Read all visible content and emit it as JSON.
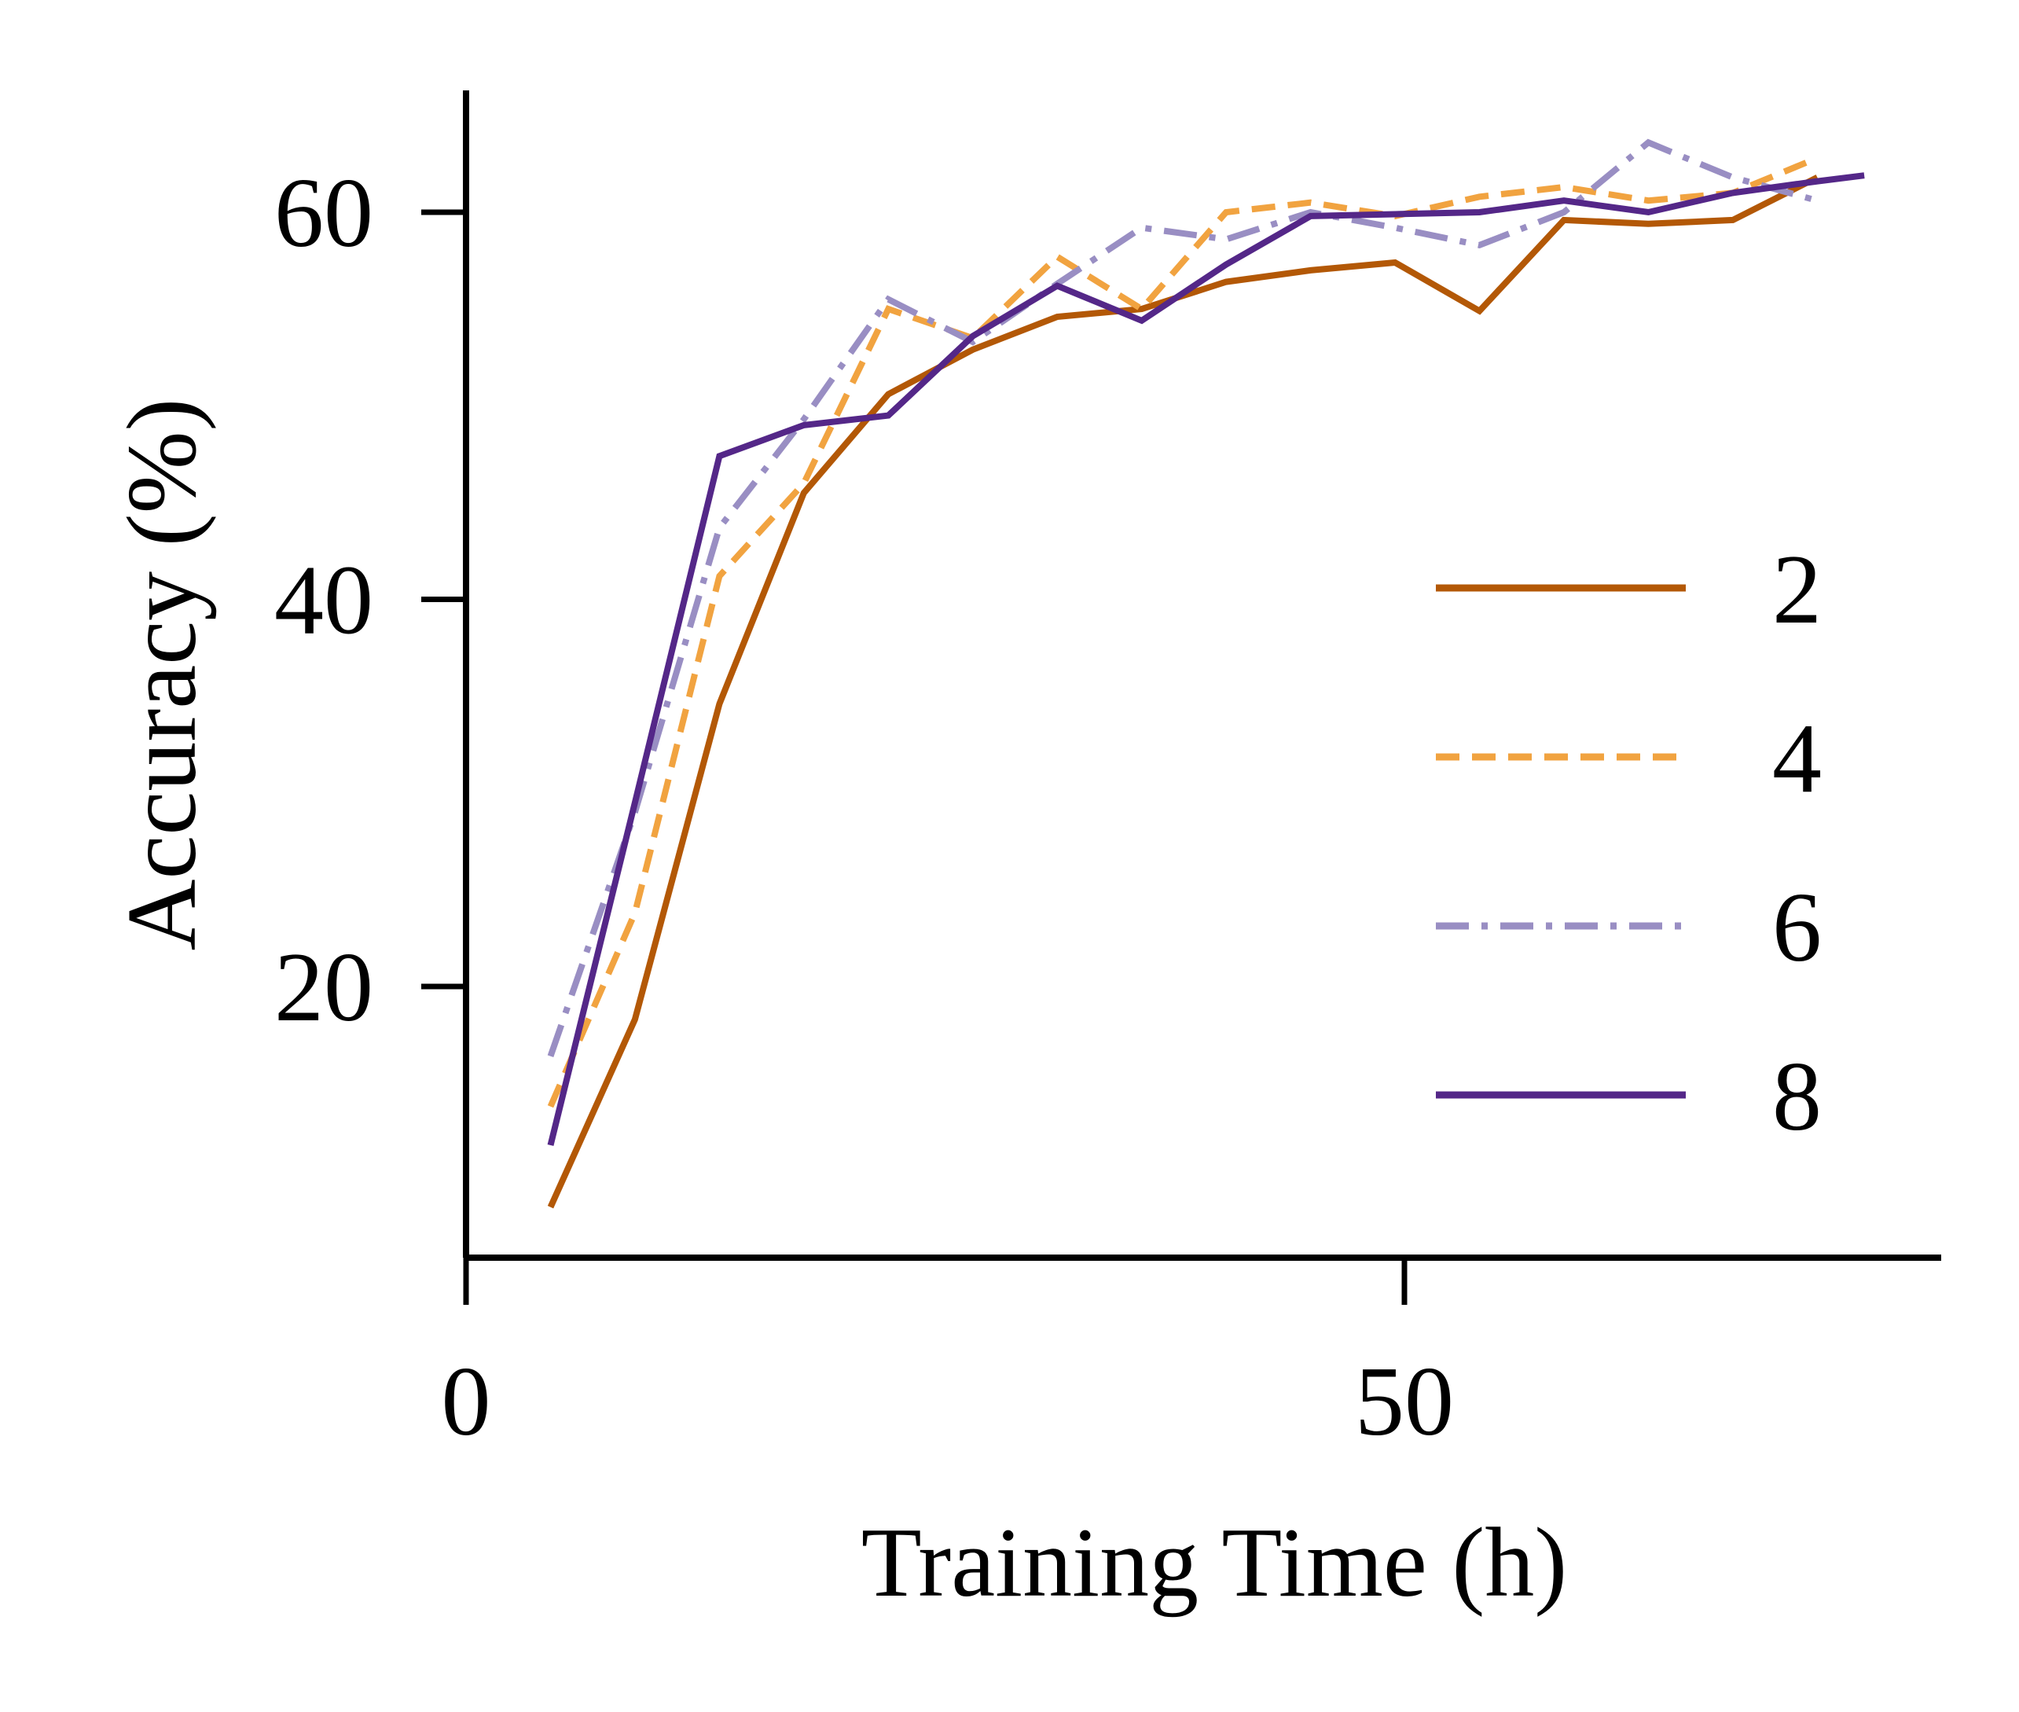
{
  "chart_data": {
    "type": "line",
    "title": "",
    "xlabel": "Training Time (h)",
    "ylabel": "Accuracy (%)",
    "xlim": [
      0,
      78
    ],
    "ylim": [
      6,
      66
    ],
    "xticks": [
      0,
      50
    ],
    "yticks": [
      20,
      40,
      60
    ],
    "grid": false,
    "legend_position": "right",
    "series": [
      {
        "name": "2",
        "color": "#b35806",
        "dash": "solid",
        "x": [
          4.5,
          9,
          13.5,
          18,
          22.5,
          27,
          31.5,
          36,
          40.5,
          45,
          49.5,
          54,
          58.5,
          63,
          67.5,
          72
        ],
        "y": [
          8.6,
          18.3,
          34.6,
          45.5,
          50.6,
          52.9,
          54.6,
          55.0,
          56.4,
          57.0,
          57.4,
          54.9,
          59.6,
          59.4,
          59.6,
          61.8
        ]
      },
      {
        "name": "4",
        "color": "#f1a340",
        "dash": "dashed",
        "x": [
          4.5,
          9,
          13.5,
          18,
          22.5,
          27,
          31.5,
          36,
          40.5,
          45,
          49.5,
          54,
          58.5,
          63,
          67.5,
          72
        ],
        "y": [
          13.8,
          23.8,
          41.2,
          46.0,
          55.0,
          53.5,
          57.7,
          55.0,
          60.0,
          60.5,
          59.8,
          60.8,
          61.3,
          60.6,
          61.0,
          62.8
        ]
      },
      {
        "name": "6",
        "color": "#998ec3",
        "dash": "dashdot",
        "x": [
          4.5,
          9,
          13.5,
          18,
          22.5,
          27,
          31.5,
          36,
          40.5,
          45,
          49.5,
          54,
          58.5,
          63,
          67.5,
          72
        ],
        "y": [
          16.4,
          29.0,
          43.7,
          49.3,
          55.5,
          53.3,
          56.3,
          59.2,
          58.6,
          60.0,
          59.2,
          58.3,
          60.0,
          63.6,
          61.8,
          60.6
        ]
      },
      {
        "name": "8",
        "color": "#542788",
        "dash": "solid",
        "x": [
          4.5,
          9,
          13.5,
          18,
          22.5,
          27,
          31.5,
          36,
          40.5,
          45,
          49.5,
          54,
          58.5,
          63,
          67.5,
          72,
          74.5
        ],
        "y": [
          11.8,
          29.5,
          47.4,
          49.0,
          49.5,
          53.6,
          56.2,
          54.4,
          57.3,
          59.8,
          59.9,
          60.0,
          60.6,
          60.0,
          61.0,
          61.6,
          61.9
        ]
      }
    ]
  }
}
